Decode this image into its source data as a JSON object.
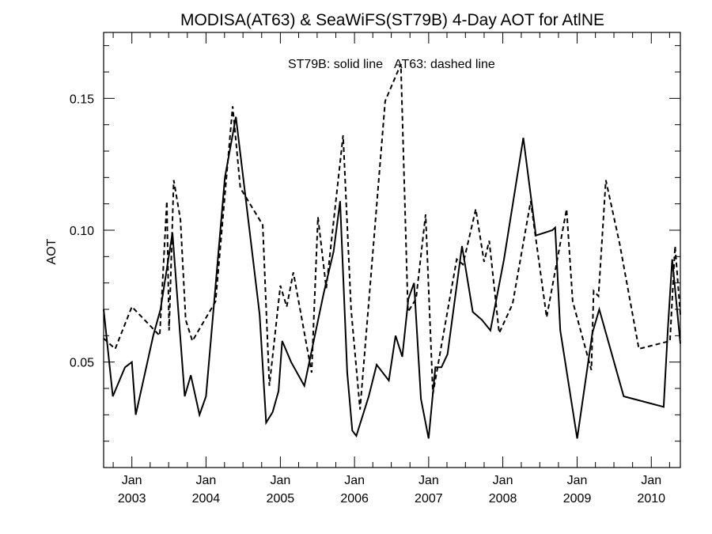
{
  "chart_data": {
    "type": "line",
    "title": "MODISA(AT63) & SeaWiFS(ST79B) 4-Day AOT for AtlNE",
    "annotation_solid": "ST79B: solid line",
    "annotation_dashed": "AT63: dashed line",
    "xlabel": "",
    "ylabel": "AOT",
    "xlim": [
      "2002-08-15",
      "2010-05-24"
    ],
    "ylim": [
      0.01,
      0.175
    ],
    "y_ticks": [
      {
        "value": 0.05,
        "label": "0.05"
      },
      {
        "value": 0.1,
        "label": "0.10"
      },
      {
        "value": 0.15,
        "label": "0.15"
      }
    ],
    "y_minor_step": 0.01,
    "x_ticks": [
      {
        "date": "2003-01-01",
        "month": "Jan",
        "year": "2003"
      },
      {
        "date": "2004-01-01",
        "month": "Jan",
        "year": "2004"
      },
      {
        "date": "2005-01-01",
        "month": "Jan",
        "year": "2005"
      },
      {
        "date": "2006-01-01",
        "month": "Jan",
        "year": "2006"
      },
      {
        "date": "2007-01-01",
        "month": "Jan",
        "year": "2007"
      },
      {
        "date": "2008-01-01",
        "month": "Jan",
        "year": "2008"
      },
      {
        "date": "2009-01-01",
        "month": "Jan",
        "year": "2009"
      },
      {
        "date": "2010-01-01",
        "month": "Jan",
        "year": "2010"
      }
    ],
    "series": [
      {
        "style": "solid",
        "color": "#000000",
        "points": [
          [
            "2002-08-15",
            0.07
          ],
          [
            "2002-09-29",
            0.037
          ],
          [
            "2002-11-28",
            0.048
          ],
          [
            "2003-01-01",
            0.05
          ],
          [
            "2003-01-20",
            0.03
          ],
          [
            "2003-04-16",
            0.06
          ],
          [
            "2003-05-22",
            0.07
          ],
          [
            "2003-07-20",
            0.099
          ],
          [
            "2003-09-18",
            0.037
          ],
          [
            "2003-10-18",
            0.045
          ],
          [
            "2003-11-30",
            0.03
          ],
          [
            "2004-01-01",
            0.037
          ],
          [
            "2004-04-03",
            0.12
          ],
          [
            "2004-05-27",
            0.143
          ],
          [
            "2004-09-21",
            0.068
          ],
          [
            "2004-10-23",
            0.027
          ],
          [
            "2004-11-24",
            0.031
          ],
          [
            "2004-12-23",
            0.039
          ],
          [
            "2005-01-10",
            0.058
          ],
          [
            "2005-02-23",
            0.05
          ],
          [
            "2005-04-29",
            0.041
          ],
          [
            "2005-08-02",
            0.076
          ],
          [
            "2005-09-20",
            0.092
          ],
          [
            "2005-10-22",
            0.111
          ],
          [
            "2005-11-26",
            0.046
          ],
          [
            "2005-12-21",
            0.024
          ],
          [
            "2006-01-10",
            0.022
          ],
          [
            "2006-03-12",
            0.037
          ],
          [
            "2006-04-20",
            0.049
          ],
          [
            "2006-06-19",
            0.043
          ],
          [
            "2006-07-22",
            0.06
          ],
          [
            "2006-08-24",
            0.052
          ],
          [
            "2006-09-23",
            0.074
          ],
          [
            "2006-10-21",
            0.08
          ],
          [
            "2006-11-24",
            0.036
          ],
          [
            "2007-01-01",
            0.021
          ],
          [
            "2007-02-03",
            0.048
          ],
          [
            "2007-03-05",
            0.048
          ],
          [
            "2007-04-04",
            0.053
          ],
          [
            "2007-06-14",
            0.094
          ],
          [
            "2007-08-06",
            0.069
          ],
          [
            "2007-09-20",
            0.066
          ],
          [
            "2007-11-01",
            0.062
          ],
          [
            "2008-01-07",
            0.089
          ],
          [
            "2008-04-11",
            0.135
          ],
          [
            "2008-06-12",
            0.098
          ],
          [
            "2008-09-01",
            0.1
          ],
          [
            "2008-09-15",
            0.101
          ],
          [
            "2008-10-10",
            0.062
          ],
          [
            "2009-01-01",
            0.021
          ],
          [
            "2009-03-17",
            0.061
          ],
          [
            "2009-04-20",
            0.07
          ],
          [
            "2009-08-18",
            0.037
          ],
          [
            "2010-03-03",
            0.033
          ],
          [
            "2010-03-23",
            0.062
          ],
          [
            "2010-04-14",
            0.089
          ],
          [
            "2010-05-24",
            0.057
          ]
        ]
      },
      {
        "style": "dashed",
        "color": "#000000",
        "points": [
          [
            "2002-08-15",
            0.059
          ],
          [
            "2002-10-11",
            0.055
          ],
          [
            "2003-01-01",
            0.071
          ],
          [
            "2003-05-18",
            0.06
          ],
          [
            "2003-06-22",
            0.111
          ],
          [
            "2003-07-03",
            0.062
          ],
          [
            "2003-07-26",
            0.119
          ],
          [
            "2003-08-28",
            0.104
          ],
          [
            "2003-09-23",
            0.066
          ],
          [
            "2003-10-26",
            0.058
          ],
          [
            "2004-02-17",
            0.073
          ],
          [
            "2004-05-11",
            0.147
          ],
          [
            "2004-06-18",
            0.116
          ],
          [
            "2004-10-06",
            0.102
          ],
          [
            "2004-11-08",
            0.041
          ],
          [
            "2005-01-01",
            0.079
          ],
          [
            "2005-02-01",
            0.071
          ],
          [
            "2005-03-06",
            0.084
          ],
          [
            "2005-06-04",
            0.046
          ],
          [
            "2005-07-05",
            0.105
          ],
          [
            "2005-08-15",
            0.078
          ],
          [
            "2005-11-06",
            0.136
          ],
          [
            "2005-12-15",
            0.07
          ],
          [
            "2006-01-28",
            0.032
          ],
          [
            "2006-06-01",
            0.149
          ],
          [
            "2006-08-17",
            0.163
          ],
          [
            "2006-09-21",
            0.069
          ],
          [
            "2006-10-31",
            0.074
          ],
          [
            "2006-12-17",
            0.106
          ],
          [
            "2007-01-22",
            0.038
          ],
          [
            "2007-05-19",
            0.089
          ],
          [
            "2007-06-19",
            0.087
          ],
          [
            "2007-08-21",
            0.108
          ],
          [
            "2007-10-01",
            0.088
          ],
          [
            "2007-10-26",
            0.096
          ],
          [
            "2007-12-14",
            0.061
          ],
          [
            "2008-02-18",
            0.072
          ],
          [
            "2008-05-17",
            0.111
          ],
          [
            "2008-08-04",
            0.067
          ],
          [
            "2008-11-10",
            0.108
          ],
          [
            "2008-12-10",
            0.073
          ],
          [
            "2009-03-12",
            0.047
          ],
          [
            "2009-03-23",
            0.077
          ],
          [
            "2009-04-16",
            0.075
          ],
          [
            "2009-05-22",
            0.119
          ],
          [
            "2009-07-29",
            0.095
          ],
          [
            "2009-11-01",
            0.055
          ],
          [
            "2010-04-03",
            0.058
          ],
          [
            "2010-04-28",
            0.094
          ],
          [
            "2010-05-24",
            0.068
          ]
        ]
      }
    ],
    "grid": false,
    "legend": "none"
  }
}
